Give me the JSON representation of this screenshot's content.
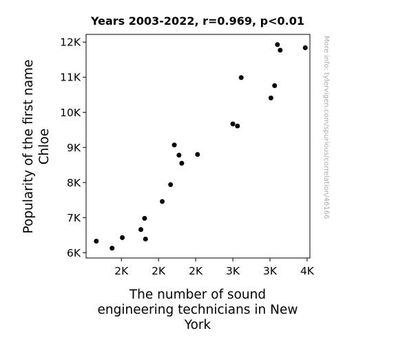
{
  "chart_data": {
    "type": "scatter",
    "title": "Years 2003-2022, r=0.969, p<0.01",
    "xlabel_lines": [
      "The number of sound",
      "engineering technicians in New",
      "York"
    ],
    "ylabel_lines": [
      "Popularity of the first name",
      "Chloe"
    ],
    "watermark": "More info: tylervigen.com/spurious/correlation/46166",
    "xlim": [
      1420,
      3830
    ],
    "ylim": [
      5850,
      12220
    ],
    "x_ticks": [
      {
        "value": 1800,
        "label": "2K"
      },
      {
        "value": 2200,
        "label": "2K"
      },
      {
        "value": 2600,
        "label": "2K"
      },
      {
        "value": 3000,
        "label": "3K"
      },
      {
        "value": 3400,
        "label": "3K"
      },
      {
        "value": 3800,
        "label": "4K"
      }
    ],
    "y_ticks": [
      {
        "value": 6000,
        "label": "6K"
      },
      {
        "value": 7000,
        "label": "7K"
      },
      {
        "value": 8000,
        "label": "8K"
      },
      {
        "value": 9000,
        "label": "9K"
      },
      {
        "value": 10000,
        "label": "10K"
      },
      {
        "value": 11000,
        "label": "11K"
      },
      {
        "value": 12000,
        "label": "12K"
      }
    ],
    "points": [
      {
        "x": 1530,
        "y": 6330
      },
      {
        "x": 1700,
        "y": 6130
      },
      {
        "x": 1810,
        "y": 6430
      },
      {
        "x": 2010,
        "y": 6660
      },
      {
        "x": 2050,
        "y": 6980
      },
      {
        "x": 2060,
        "y": 6390
      },
      {
        "x": 2240,
        "y": 7460
      },
      {
        "x": 2330,
        "y": 7940
      },
      {
        "x": 2370,
        "y": 9070
      },
      {
        "x": 2420,
        "y": 8780
      },
      {
        "x": 2450,
        "y": 8550
      },
      {
        "x": 2620,
        "y": 8800
      },
      {
        "x": 3000,
        "y": 9670
      },
      {
        "x": 3050,
        "y": 9610
      },
      {
        "x": 3090,
        "y": 10990
      },
      {
        "x": 3410,
        "y": 10410
      },
      {
        "x": 3450,
        "y": 10760
      },
      {
        "x": 3480,
        "y": 11930
      },
      {
        "x": 3510,
        "y": 11770
      },
      {
        "x": 3780,
        "y": 11840
      }
    ],
    "marker_color": "#000000",
    "grid": false
  }
}
